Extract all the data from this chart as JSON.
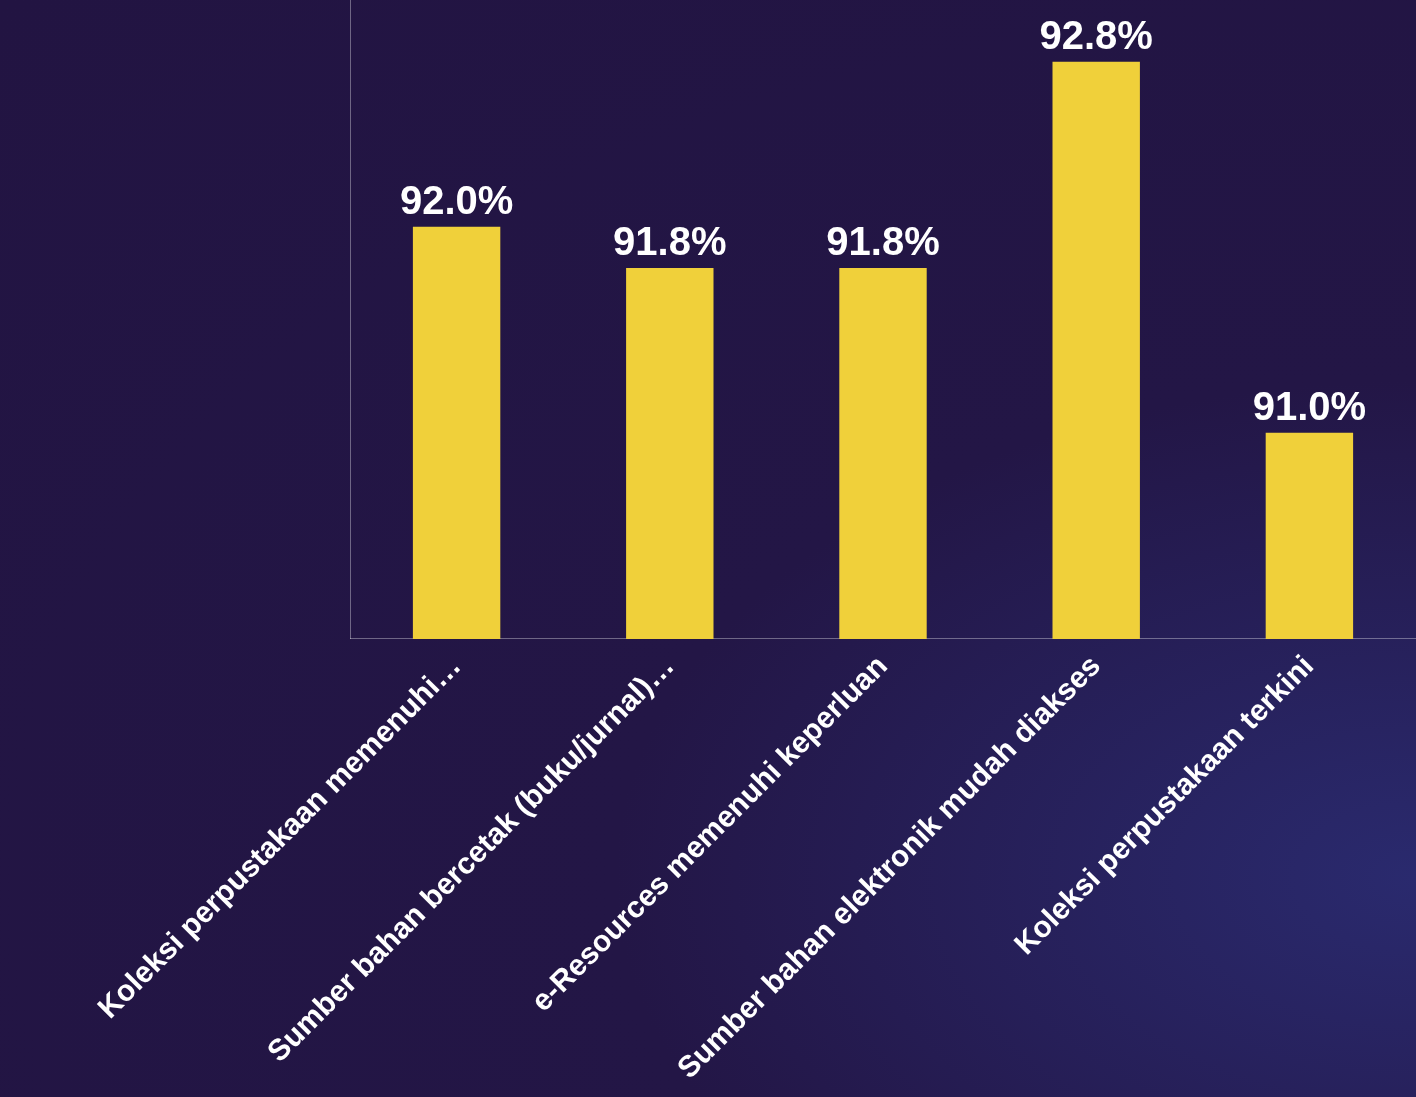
{
  "chart_data": {
    "type": "bar",
    "categories": [
      "Koleksi perpustakaan memenuhi…",
      "Sumber bahan bercetak (buku/jurnal)…",
      "e-Resources memenuhi keperluan",
      "Sumber bahan elektronik mudah diakses",
      "Koleksi perpustakaan terkini"
    ],
    "values": [
      92.0,
      91.8,
      91.8,
      92.8,
      91.0
    ],
    "value_labels": [
      "92.0%",
      "91.8%",
      "91.8%",
      "92.8%",
      "91.0%"
    ],
    "color": "#f0d03a",
    "ylim": [
      90,
      93.1
    ],
    "tick_labels": "x",
    "grid": false,
    "legend": false
  }
}
